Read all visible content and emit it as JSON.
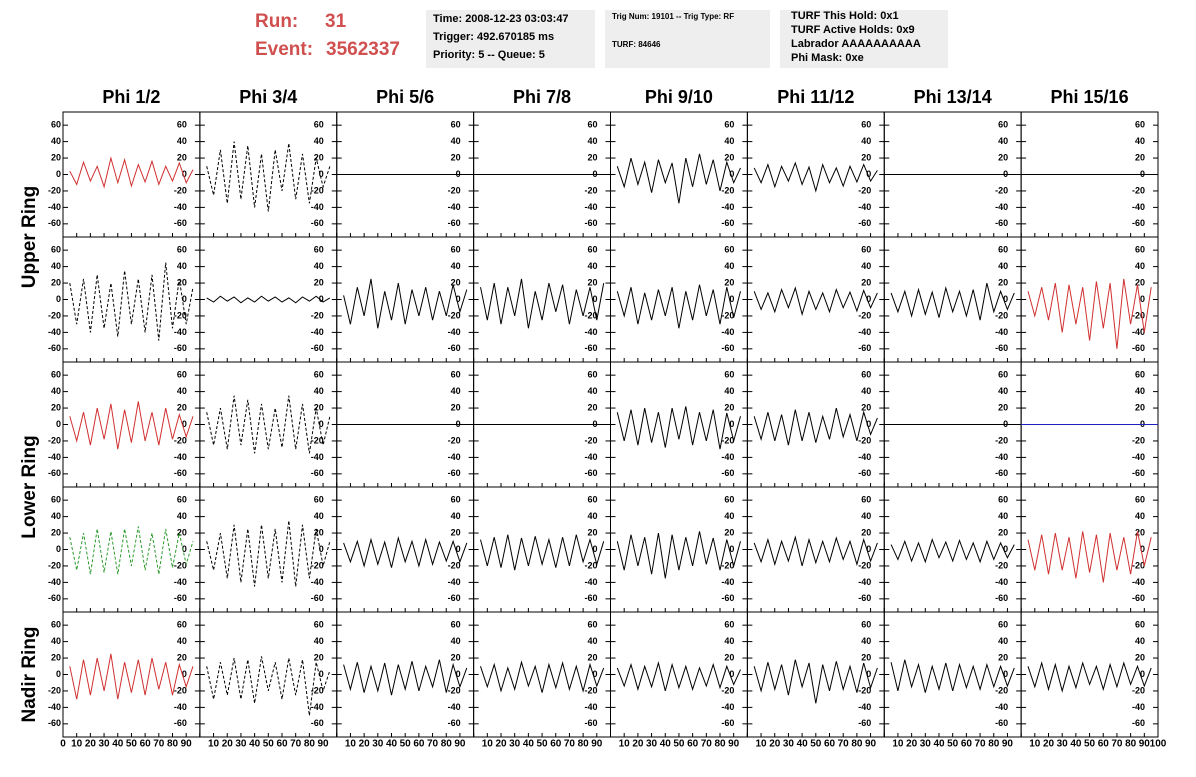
{
  "header": {
    "run_label": "Run:",
    "run": "31",
    "event_label": "Event:",
    "event": "3562337",
    "box1": [
      "Time: 2008-12-23 03:03:47",
      "Trigger: 492.670185 ms",
      "Priority: 5 -- Queue: 5"
    ],
    "box2": [
      "Trig Num: 19101 -- Trig Type: RF",
      "TURF: 84646"
    ],
    "box3": [
      "TURF This Hold: 0x1",
      "TURF Active Holds: 0x9",
      "Labrador AAAAAAAAAA",
      "Phi Mask: 0xe"
    ]
  },
  "chart_data": {
    "type": "line",
    "columns": [
      "Phi 1/2",
      "Phi 3/4",
      "Phi 5/6",
      "Phi 7/8",
      "Phi 9/10",
      "Phi 11/12",
      "Phi 13/14",
      "Phi 15/16"
    ],
    "ring_labels": [
      "Upper Ring",
      "Lower Ring",
      "Nadir Ring"
    ],
    "xlim": [
      0,
      100
    ],
    "xticks": [
      0,
      10,
      20,
      30,
      40,
      50,
      60,
      70,
      80,
      90,
      100
    ],
    "ylim": [
      -76,
      76
    ],
    "yticks": [
      -60,
      -40,
      -20,
      0,
      20,
      40,
      60
    ],
    "x": [
      5,
      10,
      15,
      20,
      25,
      30,
      35,
      40,
      45,
      50,
      55,
      60,
      65,
      70,
      75,
      80,
      85,
      90,
      95
    ],
    "panels": [
      {
        "color": "#d03030",
        "style": "solid",
        "values": [
          4,
          -12,
          15,
          -8,
          10,
          -15,
          20,
          -10,
          18,
          -14,
          12,
          -9,
          16,
          -12,
          10,
          -8,
          14,
          -10,
          6
        ]
      },
      {
        "color": "#000000",
        "style": "dashed",
        "values": [
          10,
          -25,
          30,
          -35,
          40,
          -30,
          35,
          -40,
          25,
          -45,
          30,
          -20,
          38,
          -30,
          25,
          -35,
          20,
          -15,
          10
        ]
      },
      {
        "color": "#000000",
        "style": "solid",
        "x": [
          0,
          100
        ],
        "values": [
          0,
          0
        ]
      },
      {
        "color": "#000000",
        "style": "solid",
        "x": [
          0,
          100
        ],
        "values": [
          0,
          0
        ]
      },
      {
        "color": "#000000",
        "style": "solid",
        "values": [
          10,
          -15,
          20,
          -12,
          15,
          -22,
          18,
          -10,
          14,
          -35,
          20,
          -15,
          25,
          -12,
          18,
          -20,
          15,
          -10,
          8
        ]
      },
      {
        "color": "#000000",
        "style": "solid",
        "values": [
          8,
          -10,
          12,
          -15,
          10,
          -8,
          14,
          -12,
          9,
          -20,
          12,
          -10,
          8,
          -14,
          10,
          -9,
          12,
          -8,
          5
        ]
      },
      {
        "color": "#000000",
        "style": "solid",
        "x": [
          0,
          100
        ],
        "values": [
          0,
          0
        ]
      },
      {
        "color": "#000000",
        "style": "solid",
        "x": [
          0,
          100
        ],
        "values": [
          0,
          0
        ]
      },
      {
        "color": "#000000",
        "style": "dashed",
        "values": [
          20,
          -30,
          25,
          -40,
          30,
          -35,
          20,
          -45,
          35,
          -30,
          25,
          -40,
          30,
          -50,
          45,
          -35,
          25,
          -30,
          15
        ]
      },
      {
        "color": "#000000",
        "style": "solid",
        "values": [
          2,
          -3,
          4,
          -2,
          3,
          -4,
          2,
          -3,
          4,
          -2,
          3,
          -3,
          2,
          -4,
          3,
          -2,
          4,
          -3,
          2
        ]
      },
      {
        "color": "#000000",
        "style": "solid",
        "values": [
          5,
          -30,
          15,
          -20,
          25,
          -35,
          10,
          -25,
          20,
          -30,
          12,
          -20,
          15,
          -25,
          10,
          -20,
          18,
          -15,
          12
        ]
      },
      {
        "color": "#000000",
        "style": "solid",
        "values": [
          15,
          -25,
          20,
          -30,
          15,
          -20,
          25,
          -35,
          10,
          -25,
          20,
          -15,
          18,
          -30,
          12,
          -20,
          15,
          -25,
          20
        ]
      },
      {
        "color": "#000000",
        "style": "solid",
        "values": [
          10,
          -20,
          15,
          -30,
          8,
          -25,
          12,
          -20,
          15,
          -35,
          10,
          -25,
          18,
          -20,
          12,
          -30,
          15,
          -22,
          10
        ]
      },
      {
        "color": "#000000",
        "style": "solid",
        "values": [
          10,
          -12,
          8,
          -15,
          12,
          -10,
          14,
          -18,
          10,
          -12,
          8,
          -15,
          12,
          -10,
          9,
          -14,
          11,
          -10,
          8
        ]
      },
      {
        "color": "#000000",
        "style": "solid",
        "values": [
          8,
          -15,
          10,
          -20,
          12,
          -18,
          9,
          -22,
          14,
          -15,
          10,
          -20,
          12,
          -25,
          20,
          -15,
          10,
          -12,
          8
        ]
      },
      {
        "color": "#d03030",
        "style": "solid",
        "values": [
          10,
          -20,
          15,
          -25,
          20,
          -40,
          18,
          -30,
          15,
          -50,
          22,
          -35,
          20,
          -60,
          25,
          -30,
          18,
          -40,
          15
        ]
      },
      {
        "color": "#d03030",
        "style": "solid",
        "values": [
          10,
          -20,
          15,
          -25,
          20,
          -18,
          25,
          -30,
          18,
          -22,
          28,
          -20,
          15,
          -25,
          20,
          -18,
          12,
          -15,
          10
        ]
      },
      {
        "color": "#000000",
        "style": "dashed",
        "values": [
          15,
          -25,
          20,
          -30,
          35,
          -25,
          30,
          -35,
          25,
          -30,
          20,
          -28,
          35,
          -30,
          25,
          -35,
          20,
          -25,
          10
        ]
      },
      {
        "color": "#000000",
        "style": "solid",
        "x": [
          0,
          100
        ],
        "values": [
          0,
          0
        ]
      },
      {
        "color": "#000000",
        "style": "solid",
        "x": [
          0,
          100
        ],
        "values": [
          0,
          0
        ]
      },
      {
        "color": "#000000",
        "style": "solid",
        "values": [
          15,
          -20,
          18,
          -25,
          20,
          -22,
          15,
          -28,
          20,
          -18,
          22,
          -25,
          15,
          -20,
          18,
          -30,
          14,
          -20,
          10
        ]
      },
      {
        "color": "#000000",
        "style": "solid",
        "values": [
          10,
          -18,
          15,
          -20,
          12,
          -25,
          18,
          -20,
          15,
          -22,
          10,
          -18,
          20,
          -15,
          12,
          -20,
          15,
          -12,
          8
        ]
      },
      {
        "color": "#000000",
        "style": "solid",
        "x": [
          0,
          100
        ],
        "values": [
          0,
          0
        ]
      },
      {
        "color": "#2020c0",
        "style": "solid",
        "x": [
          0,
          100
        ],
        "values": [
          0,
          0
        ]
      },
      {
        "color": "#2a9a2a",
        "style": "dashed",
        "values": [
          15,
          -25,
          20,
          -30,
          25,
          -28,
          22,
          -30,
          25,
          -20,
          28,
          -25,
          20,
          -30,
          25,
          -22,
          20,
          -18,
          10
        ]
      },
      {
        "color": "#000000",
        "style": "dashed",
        "values": [
          10,
          -25,
          20,
          -35,
          30,
          -40,
          25,
          -45,
          30,
          -35,
          25,
          -40,
          35,
          -45,
          30,
          -35,
          25,
          -20,
          10
        ]
      },
      {
        "color": "#000000",
        "style": "solid",
        "values": [
          8,
          -15,
          10,
          -20,
          12,
          -18,
          9,
          -22,
          14,
          -15,
          10,
          -20,
          12,
          -18,
          9,
          -14,
          10,
          -15,
          8
        ]
      },
      {
        "color": "#000000",
        "style": "solid",
        "values": [
          12,
          -20,
          15,
          -22,
          18,
          -25,
          14,
          -20,
          16,
          -18,
          12,
          -22,
          15,
          -20,
          18,
          -15,
          12,
          -18,
          10
        ]
      },
      {
        "color": "#000000",
        "style": "solid",
        "values": [
          10,
          -25,
          18,
          -20,
          15,
          -30,
          20,
          -35,
          18,
          -25,
          15,
          -20,
          22,
          -18,
          14,
          -25,
          12,
          -20,
          10
        ]
      },
      {
        "color": "#000000",
        "style": "solid",
        "values": [
          8,
          -15,
          12,
          -18,
          10,
          -14,
          15,
          -20,
          12,
          -16,
          10,
          -15,
          14,
          -12,
          10,
          -18,
          12,
          -14,
          8
        ]
      },
      {
        "color": "#000000",
        "style": "solid",
        "values": [
          6,
          -12,
          10,
          -14,
          8,
          -15,
          12,
          -10,
          9,
          -14,
          11,
          -12,
          8,
          -15,
          10,
          -12,
          8,
          -10,
          6
        ]
      },
      {
        "color": "#d03030",
        "style": "solid",
        "values": [
          12,
          -25,
          18,
          -30,
          20,
          -25,
          15,
          -35,
          22,
          -28,
          18,
          -40,
          20,
          -25,
          15,
          -30,
          22,
          -20,
          15
        ]
      },
      {
        "color": "#d03030",
        "style": "solid",
        "values": [
          10,
          -30,
          18,
          -25,
          20,
          -20,
          25,
          -30,
          15,
          -22,
          18,
          -25,
          20,
          -18,
          15,
          -25,
          12,
          -15,
          10
        ]
      },
      {
        "color": "#000000",
        "style": "dashed",
        "values": [
          10,
          -30,
          15,
          -25,
          20,
          -30,
          18,
          -35,
          22,
          -20,
          15,
          -30,
          20,
          -25,
          18,
          -50,
          15,
          -20,
          5
        ]
      },
      {
        "color": "#000000",
        "style": "solid",
        "values": [
          12,
          -18,
          15,
          -22,
          10,
          -20,
          14,
          -25,
          12,
          -18,
          16,
          -20,
          10,
          -15,
          18,
          -22,
          12,
          -15,
          8
        ]
      },
      {
        "color": "#000000",
        "style": "solid",
        "values": [
          10,
          -15,
          12,
          -20,
          8,
          -18,
          15,
          -14,
          10,
          -22,
          12,
          -16,
          14,
          -18,
          10,
          -20,
          12,
          -14,
          8
        ]
      },
      {
        "color": "#000000",
        "style": "solid",
        "values": [
          8,
          -14,
          12,
          -18,
          10,
          -15,
          14,
          -20,
          12,
          -16,
          10,
          -18,
          8,
          -14,
          12,
          -16,
          10,
          -12,
          6
        ]
      },
      {
        "color": "#000000",
        "style": "solid",
        "values": [
          10,
          -20,
          15,
          -18,
          12,
          -25,
          18,
          -15,
          14,
          -35,
          12,
          -20,
          16,
          -18,
          10,
          -22,
          14,
          -16,
          8
        ]
      },
      {
        "color": "#000000",
        "style": "solid",
        "values": [
          15,
          -20,
          18,
          -15,
          12,
          -22,
          10,
          -18,
          14,
          -20,
          12,
          -16,
          10,
          -18,
          12,
          -15,
          10,
          -14,
          8
        ]
      },
      {
        "color": "#000000",
        "style": "solid",
        "values": [
          10,
          -15,
          14,
          -18,
          12,
          -20,
          10,
          -16,
          14,
          -12,
          10,
          -18,
          12,
          -15,
          14,
          -12,
          10,
          -14,
          8
        ]
      }
    ]
  }
}
